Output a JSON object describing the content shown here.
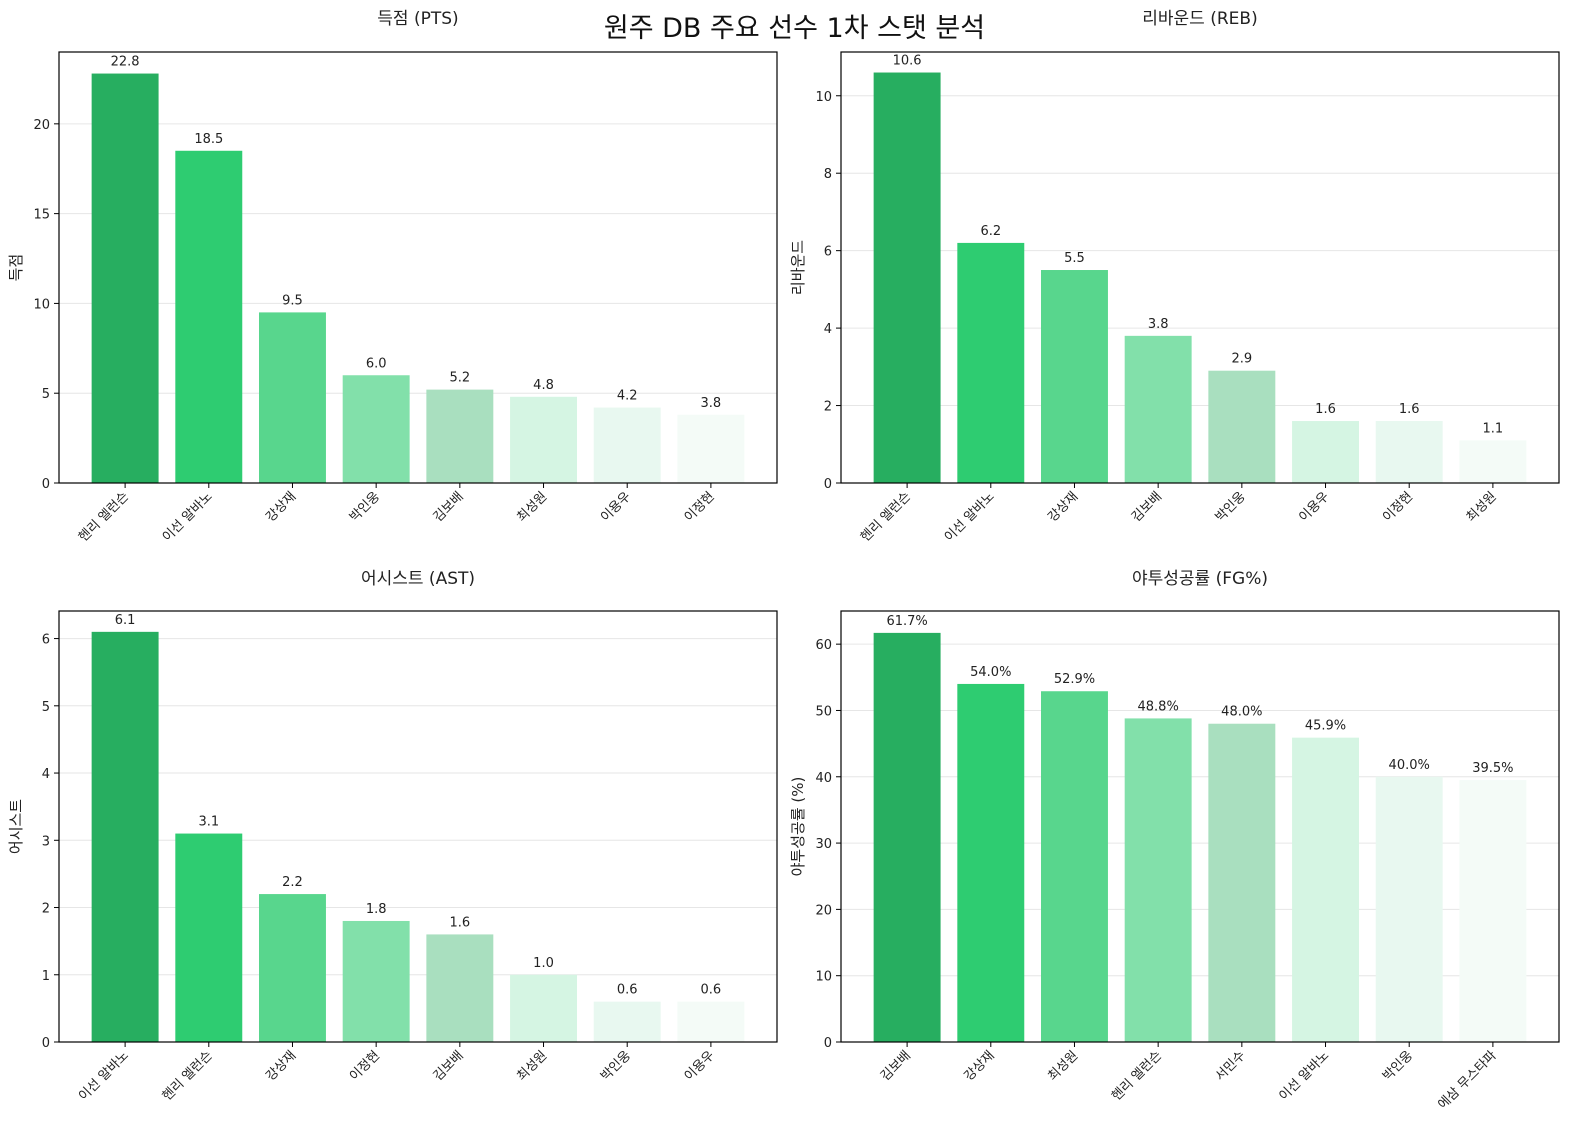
{
  "suptitle": "원주 DB 주요 선수 1차 스탯 분석",
  "colors": [
    "#27ae60",
    "#2ecc71",
    "#58d68d",
    "#82e0aa",
    "#a9dfbf",
    "#d5f5e3",
    "#e8f8f0",
    "#f4fbf7"
  ],
  "grid_color": "#e6e6e6",
  "chart_data": [
    {
      "type": "bar",
      "title": "득점 (PTS)",
      "xlabel": "",
      "ylabel": "득점",
      "categories": [
        "헨리 엘런슨",
        "이선 알바노",
        "강상재",
        "박인웅",
        "김보배",
        "최성원",
        "이용우",
        "이정현"
      ],
      "values": [
        22.8,
        18.5,
        9.5,
        6.0,
        5.2,
        4.8,
        4.2,
        3.8
      ],
      "value_labels": [
        "22.8",
        "18.5",
        "9.5",
        "6.0",
        "5.2",
        "4.8",
        "4.2",
        "3.8"
      ],
      "ylim": [
        0,
        24.0
      ],
      "yticks": [
        0,
        5,
        10,
        15,
        20
      ],
      "ytick_labels": [
        "0",
        "5",
        "10",
        "15",
        "20"
      ],
      "grid": "y"
    },
    {
      "type": "bar",
      "title": "리바운드 (REB)",
      "xlabel": "",
      "ylabel": "리바운드",
      "categories": [
        "헨리 엘런슨",
        "이선 알바노",
        "강상재",
        "김보배",
        "박인웅",
        "이용우",
        "이정현",
        "최성원"
      ],
      "values": [
        10.6,
        6.2,
        5.5,
        3.8,
        2.9,
        1.6,
        1.6,
        1.1
      ],
      "value_labels": [
        "10.6",
        "6.2",
        "5.5",
        "3.8",
        "2.9",
        "1.6",
        "1.6",
        "1.1"
      ],
      "ylim": [
        0,
        11.13
      ],
      "yticks": [
        0,
        2,
        4,
        6,
        8,
        10
      ],
      "ytick_labels": [
        "0",
        "2",
        "4",
        "6",
        "8",
        "10"
      ],
      "grid": "y"
    },
    {
      "type": "bar",
      "title": "어시스트 (AST)",
      "xlabel": "",
      "ylabel": "어시스트",
      "categories": [
        "이선 알바노",
        "헨리 엘런슨",
        "강상재",
        "이정현",
        "김보배",
        "최성원",
        "박인웅",
        "이용우"
      ],
      "values": [
        6.1,
        3.1,
        2.2,
        1.8,
        1.6,
        1.0,
        0.6,
        0.6
      ],
      "value_labels": [
        "6.1",
        "3.1",
        "2.2",
        "1.8",
        "1.6",
        "1.0",
        "0.6",
        "0.6"
      ],
      "ylim": [
        0,
        6.41
      ],
      "yticks": [
        0,
        1,
        2,
        3,
        4,
        5,
        6
      ],
      "ytick_labels": [
        "0",
        "1",
        "2",
        "3",
        "4",
        "5",
        "6"
      ],
      "grid": "y"
    },
    {
      "type": "bar",
      "title": "야투성공률 (FG%)",
      "xlabel": "",
      "ylabel": "야투성공률 (%)",
      "categories": [
        "김보배",
        "강상재",
        "최성원",
        "헨리 엘런슨",
        "서민수",
        "이선 알바노",
        "박인웅",
        "에삼 무스타파"
      ],
      "values": [
        61.7,
        54.0,
        52.9,
        48.8,
        48.0,
        45.9,
        40.0,
        39.5
      ],
      "value_labels": [
        "61.7%",
        "54.0%",
        "52.9%",
        "48.8%",
        "48.0%",
        "45.9%",
        "40.0%",
        "39.5%"
      ],
      "ylim": [
        0,
        65.0
      ],
      "yticks": [
        0,
        10,
        20,
        30,
        40,
        50,
        60
      ],
      "ytick_labels": [
        "0",
        "10",
        "20",
        "30",
        "40",
        "50",
        "60"
      ],
      "grid": "y"
    }
  ]
}
